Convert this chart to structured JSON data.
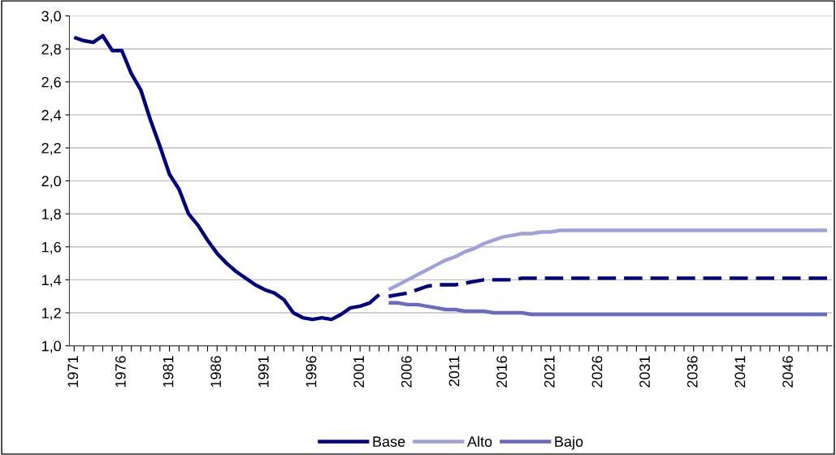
{
  "chart_data": {
    "type": "line",
    "categories": [
      "1971",
      null,
      null,
      null,
      null,
      "1976",
      null,
      null,
      null,
      null,
      "1981",
      null,
      null,
      null,
      null,
      "1986",
      null,
      null,
      null,
      null,
      "1991",
      null,
      null,
      null,
      null,
      "1996",
      null,
      null,
      null,
      null,
      "2001",
      null,
      null,
      null,
      null,
      "2006",
      null,
      null,
      null,
      null,
      "2011",
      null,
      null,
      null,
      null,
      "2016",
      null,
      null,
      null,
      null,
      "2021",
      null,
      null,
      null,
      null,
      "2026",
      null,
      null,
      null,
      null,
      "2031",
      null,
      null,
      null,
      null,
      "2036",
      null,
      null,
      null,
      null,
      "2041",
      null,
      null,
      null,
      null,
      "2046",
      null,
      null,
      null,
      null
    ],
    "ylim": [
      1.0,
      3.0
    ],
    "yticks": [
      {
        "value": 1.0,
        "label": "1,0"
      },
      {
        "value": 1.2,
        "label": "1,2"
      },
      {
        "value": 1.4,
        "label": "1,4"
      },
      {
        "value": 1.6,
        "label": "1,6"
      },
      {
        "value": 1.8,
        "label": "1,8"
      },
      {
        "value": 2.0,
        "label": "2,0"
      },
      {
        "value": 2.2,
        "label": "2,2"
      },
      {
        "value": 2.4,
        "label": "2,4"
      },
      {
        "value": 2.6,
        "label": "2,6"
      },
      {
        "value": 2.8,
        "label": "2,8"
      },
      {
        "value": 3.0,
        "label": "3,0"
      }
    ],
    "grid": "y",
    "legend": "bottom",
    "series": [
      {
        "name": "Base",
        "color": "#000080",
        "line_style": "solid",
        "values": [
          2.87,
          2.85,
          2.84,
          2.88,
          2.79,
          2.79,
          2.65,
          2.55,
          2.37,
          2.21,
          2.04,
          1.95,
          1.8,
          1.73,
          1.64,
          1.56,
          1.5,
          1.45,
          1.41,
          1.37,
          1.34,
          1.32,
          1.28,
          1.2,
          1.17,
          1.16,
          1.17,
          1.16,
          1.19,
          1.23,
          1.24,
          1.26,
          1.31,
          null,
          null,
          null,
          null,
          null,
          null,
          null,
          null,
          null,
          null,
          null,
          null,
          null,
          null,
          null,
          null,
          null,
          null,
          null,
          null,
          null,
          null,
          null,
          null,
          null,
          null,
          null,
          null,
          null,
          null,
          null,
          null,
          null,
          null,
          null,
          null,
          null,
          null,
          null,
          null,
          null,
          null,
          null,
          null,
          null,
          null,
          null
        ]
      },
      {
        "name": "Alto",
        "color": "#a0a0dc",
        "line_style": "solid",
        "values": [
          null,
          null,
          null,
          null,
          null,
          null,
          null,
          null,
          null,
          null,
          null,
          null,
          null,
          null,
          null,
          null,
          null,
          null,
          null,
          null,
          null,
          null,
          null,
          null,
          null,
          null,
          null,
          null,
          null,
          null,
          null,
          null,
          null,
          1.34,
          1.37,
          1.4,
          1.43,
          1.46,
          1.49,
          1.52,
          1.54,
          1.57,
          1.59,
          1.62,
          1.64,
          1.66,
          1.67,
          1.68,
          1.68,
          1.69,
          1.69,
          1.7,
          1.7,
          1.7,
          1.7,
          1.7,
          1.7,
          1.7,
          1.7,
          1.7,
          1.7,
          1.7,
          1.7,
          1.7,
          1.7,
          1.7,
          1.7,
          1.7,
          1.7,
          1.7,
          1.7,
          1.7,
          1.7,
          1.7,
          1.7,
          1.7,
          1.7,
          1.7,
          1.7,
          1.7
        ]
      },
      {
        "name": "Bajo",
        "color": "#6a6ac0",
        "line_style": "solid",
        "values": [
          null,
          null,
          null,
          null,
          null,
          null,
          null,
          null,
          null,
          null,
          null,
          null,
          null,
          null,
          null,
          null,
          null,
          null,
          null,
          null,
          null,
          null,
          null,
          null,
          null,
          null,
          null,
          null,
          null,
          null,
          null,
          null,
          null,
          1.26,
          1.26,
          1.25,
          1.25,
          1.24,
          1.23,
          1.22,
          1.22,
          1.21,
          1.21,
          1.21,
          1.2,
          1.2,
          1.2,
          1.2,
          1.19,
          1.19,
          1.19,
          1.19,
          1.19,
          1.19,
          1.19,
          1.19,
          1.19,
          1.19,
          1.19,
          1.19,
          1.19,
          1.19,
          1.19,
          1.19,
          1.19,
          1.19,
          1.19,
          1.19,
          1.19,
          1.19,
          1.19,
          1.19,
          1.19,
          1.19,
          1.19,
          1.19,
          1.19,
          1.19,
          1.19,
          1.19
        ]
      },
      {
        "color": "#000080",
        "line_style": "dashed",
        "values": [
          null,
          null,
          null,
          null,
          null,
          null,
          null,
          null,
          null,
          null,
          null,
          null,
          null,
          null,
          null,
          null,
          null,
          null,
          null,
          null,
          null,
          null,
          null,
          null,
          null,
          null,
          null,
          null,
          null,
          null,
          null,
          null,
          null,
          1.3,
          1.31,
          1.32,
          1.34,
          1.36,
          1.37,
          1.37,
          1.37,
          1.38,
          1.39,
          1.4,
          1.4,
          1.4,
          1.4,
          1.41,
          1.41,
          1.41,
          1.41,
          1.41,
          1.41,
          1.41,
          1.41,
          1.41,
          1.41,
          1.41,
          1.41,
          1.41,
          1.41,
          1.41,
          1.41,
          1.41,
          1.41,
          1.41,
          1.41,
          1.41,
          1.41,
          1.41,
          1.41,
          1.41,
          1.41,
          1.41,
          1.41,
          1.41,
          1.41,
          1.41,
          1.41,
          1.41
        ]
      }
    ]
  }
}
